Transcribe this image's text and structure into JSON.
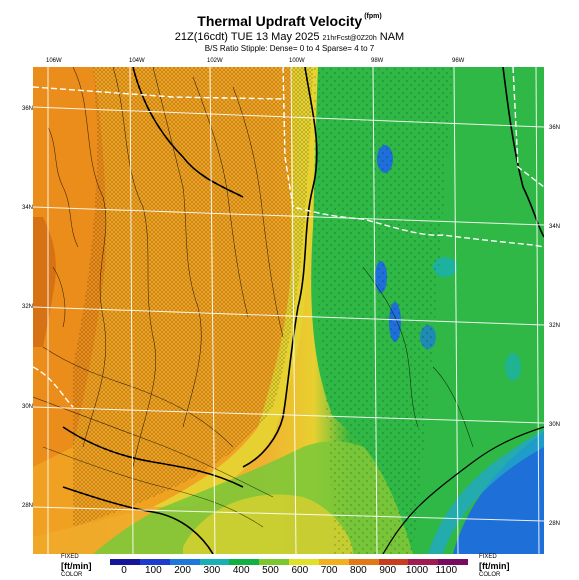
{
  "title": "Thermal Updraft Velocity",
  "title_unit": "(fpm)",
  "subtitle_main": "21Z(16cdt) TUE 13 May 2025",
  "subtitle_small": "21hrFcst@0Z20h",
  "subtitle_model": "NAM",
  "stipple_note": "B/S Ratio Stipple: Dense= 0 to 4  Sparse= 4 to 7",
  "longitudes": [
    "106W",
    "104W",
    "102W",
    "100W",
    "98W",
    "96W"
  ],
  "latitudes": [
    "36N",
    "34N",
    "32N",
    "30N",
    "28N"
  ],
  "legend": {
    "left_top": "FIXED",
    "left_unit": "[ft/min]",
    "left_bottom": "COLOR",
    "right_top": "FIXED",
    "right_unit": "[ft/min]",
    "right_bottom": "COLOR",
    "ticks": [
      "0",
      "100",
      "200",
      "300",
      "400",
      "500",
      "600",
      "700",
      "800",
      "900",
      "1000",
      "1100"
    ],
    "colors": [
      "#15159a",
      "#1c3ccf",
      "#1f78d8",
      "#18b0b4",
      "#12b040",
      "#7ac82e",
      "#e0e028",
      "#f0b020",
      "#e27818",
      "#c83c20",
      "#a01c50",
      "#780a60"
    ]
  },
  "map_colors": {
    "orange": "#f0a020",
    "yellow": "#e8d030",
    "green": "#2eb842",
    "blue": "#1e6fd8",
    "light_green": "#90d040"
  }
}
